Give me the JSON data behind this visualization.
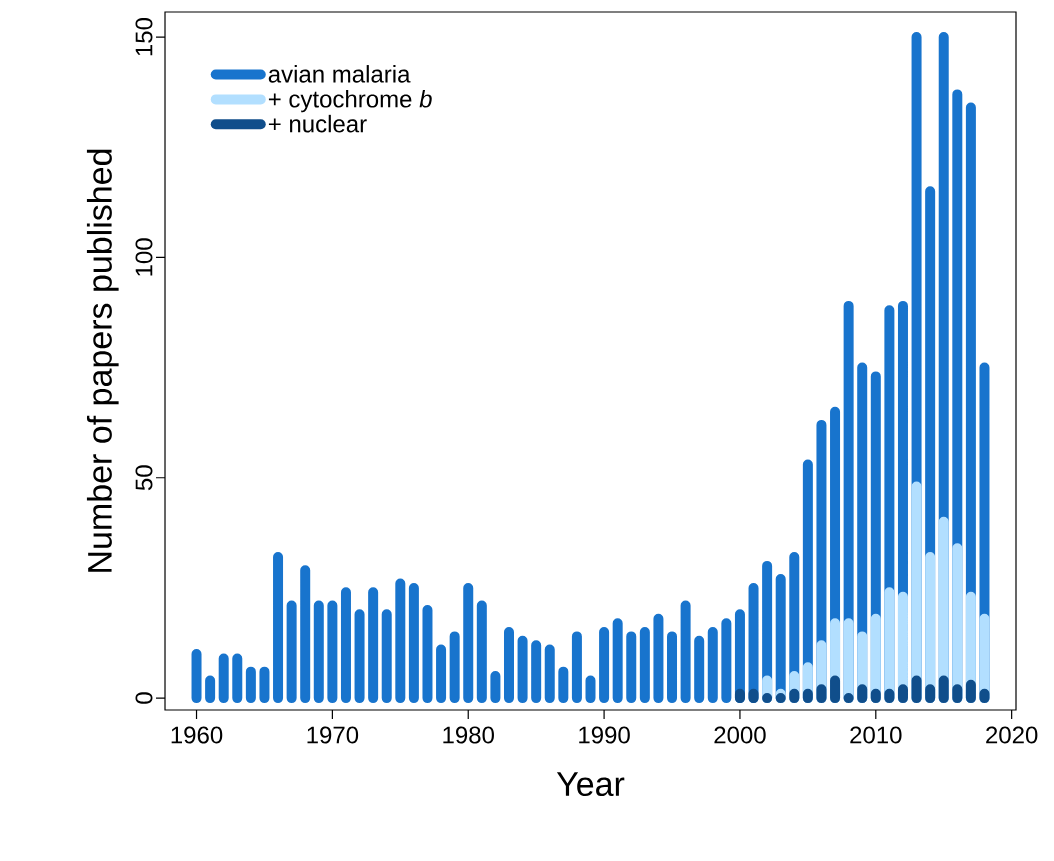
{
  "chart_data": {
    "type": "bar",
    "xlabel": "Year",
    "ylabel": "Number of papers published",
    "x": [
      1960,
      1961,
      1962,
      1963,
      1964,
      1965,
      1966,
      1967,
      1968,
      1969,
      1970,
      1971,
      1972,
      1973,
      1974,
      1975,
      1976,
      1977,
      1978,
      1979,
      1980,
      1981,
      1982,
      1983,
      1984,
      1985,
      1986,
      1987,
      1988,
      1989,
      1990,
      1991,
      1992,
      1993,
      1994,
      1995,
      1996,
      1997,
      1998,
      1999,
      2000,
      2001,
      2002,
      2003,
      2004,
      2005,
      2006,
      2007,
      2008,
      2009,
      2010,
      2011,
      2012,
      2013,
      2014,
      2015,
      2016,
      2017,
      2018
    ],
    "series": [
      {
        "name": "avian malaria",
        "color": "#1874cd",
        "values": [
          10,
          4,
          9,
          9,
          6,
          6,
          32,
          21,
          29,
          21,
          21,
          24,
          19,
          24,
          19,
          26,
          25,
          20,
          11,
          14,
          25,
          21,
          5,
          15,
          13,
          12,
          11,
          6,
          14,
          4,
          15,
          17,
          14,
          15,
          18,
          14,
          21,
          13,
          15,
          17,
          19,
          25,
          30,
          27,
          32,
          53,
          62,
          65,
          89,
          75,
          73,
          88,
          89,
          150,
          115,
          150,
          137,
          134,
          75
        ]
      },
      {
        "name": "+ cytochrome *b*",
        "color": "#b2dfff",
        "values": [
          null,
          null,
          null,
          null,
          null,
          null,
          null,
          null,
          null,
          null,
          null,
          null,
          null,
          null,
          null,
          null,
          null,
          null,
          null,
          null,
          null,
          null,
          null,
          null,
          null,
          null,
          null,
          null,
          null,
          null,
          null,
          null,
          null,
          null,
          null,
          null,
          null,
          null,
          null,
          null,
          null,
          null,
          4,
          1,
          5,
          7,
          12,
          17,
          17,
          14,
          18,
          24,
          23,
          48,
          32,
          40,
          34,
          23,
          18
        ]
      },
      {
        "name": "+ nuclear",
        "color": "#104e8b",
        "values": [
          null,
          null,
          null,
          null,
          null,
          null,
          null,
          null,
          null,
          null,
          null,
          null,
          null,
          null,
          null,
          null,
          null,
          null,
          null,
          null,
          null,
          null,
          null,
          null,
          null,
          null,
          null,
          null,
          null,
          null,
          null,
          null,
          null,
          null,
          null,
          null,
          null,
          null,
          null,
          null,
          1,
          1,
          0,
          0,
          1,
          1,
          2,
          4,
          0,
          2,
          1,
          1,
          2,
          4,
          2,
          4,
          2,
          3,
          1
        ]
      }
    ],
    "xlim": [
      1957.68,
      2020.32
    ],
    "ylim": [
      -2.7,
      155.7
    ],
    "xticks": [
      1960,
      1970,
      1980,
      1990,
      2000,
      2010,
      2020
    ],
    "yticks": [
      0,
      50,
      100,
      150
    ],
    "legend": "top left"
  }
}
